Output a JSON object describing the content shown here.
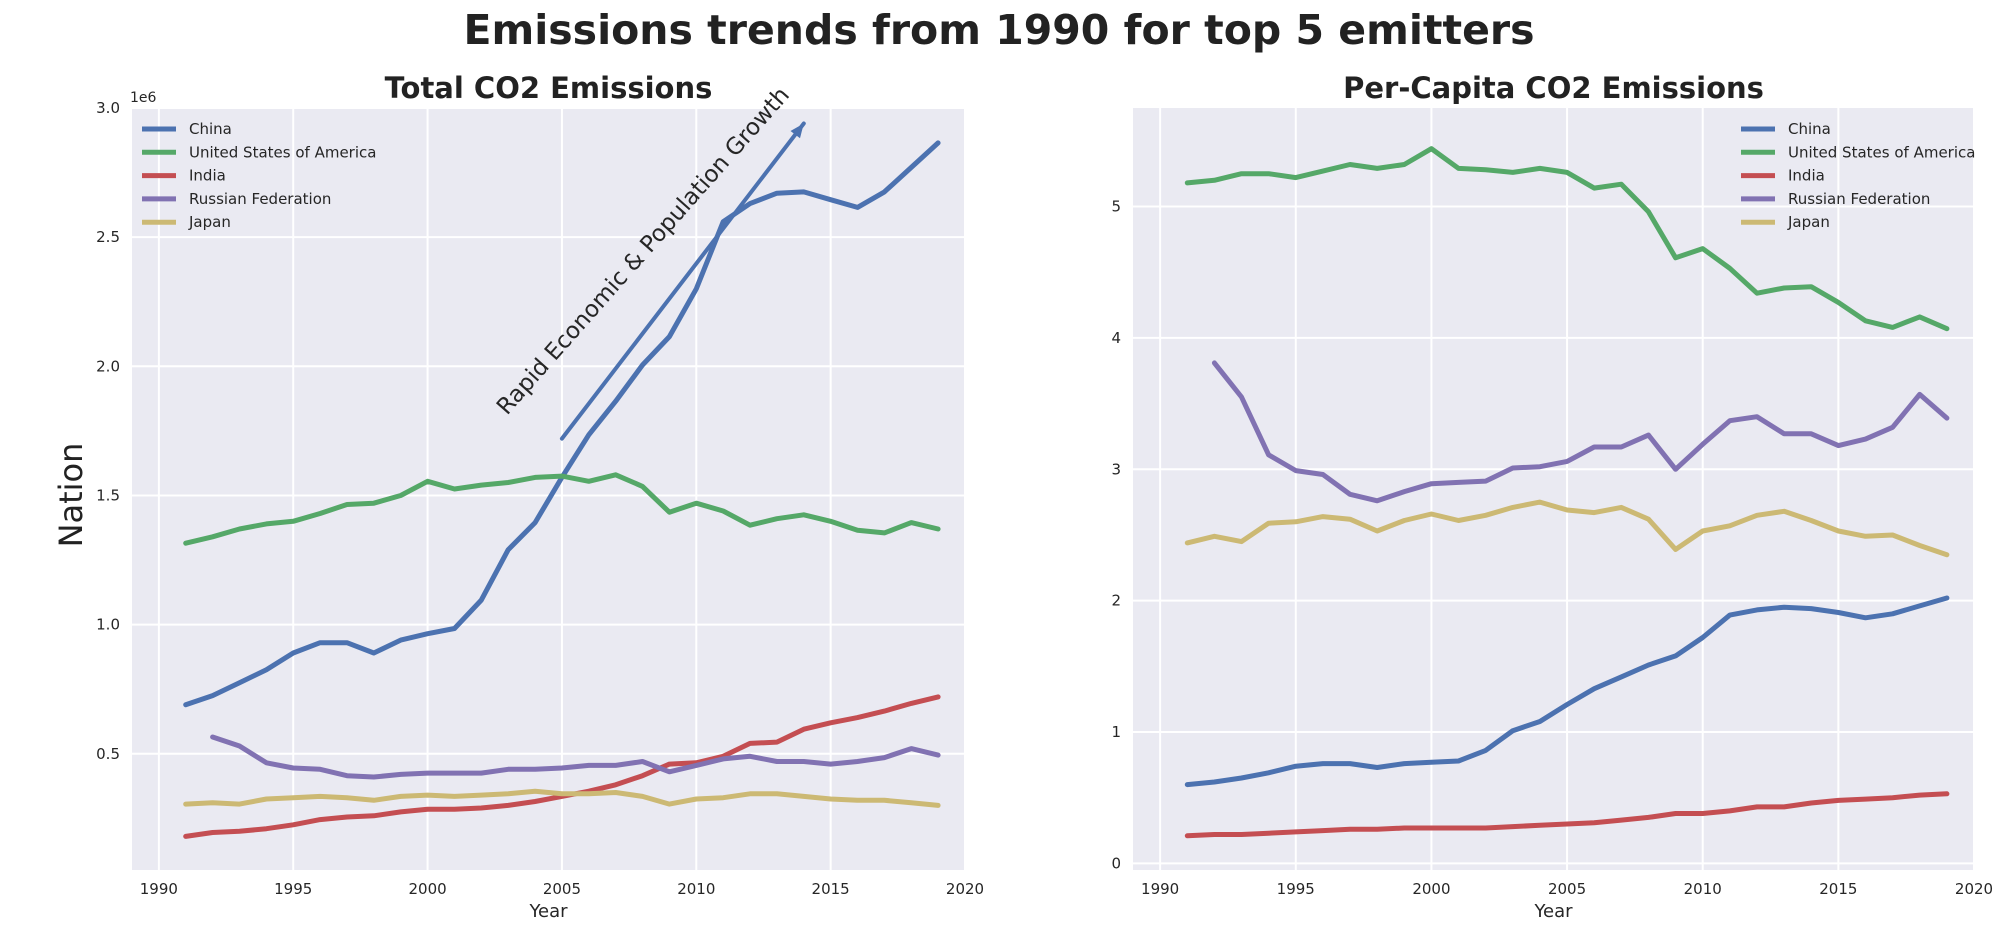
{
  "figure_title": "Emissions trends from 1990 for top 5 emitters",
  "ylabel_shared": "Nation",
  "colors": {
    "China": "#4c72b0",
    "United States of America": "#55a868",
    "India": "#c44e52",
    "Russian Federation": "#8172b2",
    "Japan": "#ccb974"
  },
  "chart_data": [
    {
      "type": "line",
      "title": "Total CO2 Emissions",
      "xlabel": "Year",
      "ylabel": "",
      "xlim": [
        1989,
        2020
      ],
      "ylim": [
        50000,
        3000000
      ],
      "y_offset_label": "1e6",
      "x_ticks": [
        1990,
        1995,
        2000,
        2005,
        2010,
        2015,
        2020
      ],
      "x_tick_labels": [
        "1990",
        "1995",
        "2000",
        "2005",
        "2010",
        "2015",
        "2020"
      ],
      "y_ticks": [
        500000,
        1000000,
        1500000,
        2000000,
        2500000,
        3000000
      ],
      "y_tick_labels": [
        "0.5",
        "1.0",
        "1.5",
        "2.0",
        "2.5",
        "3.0"
      ],
      "grid": true,
      "legend_position": "upper left",
      "series": [
        {
          "name": "China",
          "x": [
            1991,
            1992,
            1993,
            1994,
            1995,
            1996,
            1997,
            1998,
            1999,
            2000,
            2001,
            2002,
            2003,
            2004,
            2005,
            2006,
            2007,
            2008,
            2009,
            2010,
            2011,
            2012,
            2013,
            2014,
            2015,
            2016,
            2017,
            2018,
            2019
          ],
          "y": [
            690000,
            725000,
            775000,
            825000,
            890000,
            930000,
            930000,
            890000,
            940000,
            965000,
            985000,
            1095000,
            1290000,
            1395000,
            1570000,
            1735000,
            1865000,
            2005000,
            2115000,
            2300000,
            2560000,
            2630000,
            2670000,
            2675000,
            2645000,
            2615000,
            2675000,
            2770000,
            2865000
          ]
        },
        {
          "name": "United States of America",
          "x": [
            1991,
            1992,
            1993,
            1994,
            1995,
            1996,
            1997,
            1998,
            1999,
            2000,
            2001,
            2002,
            2003,
            2004,
            2005,
            2006,
            2007,
            2008,
            2009,
            2010,
            2011,
            2012,
            2013,
            2014,
            2015,
            2016,
            2017,
            2018,
            2019
          ],
          "y": [
            1315000,
            1340000,
            1370000,
            1390000,
            1400000,
            1430000,
            1465000,
            1470000,
            1500000,
            1555000,
            1525000,
            1540000,
            1550000,
            1570000,
            1575000,
            1555000,
            1580000,
            1535000,
            1435000,
            1470000,
            1440000,
            1385000,
            1410000,
            1425000,
            1400000,
            1365000,
            1355000,
            1395000,
            1370000
          ]
        },
        {
          "name": "India",
          "x": [
            1991,
            1992,
            1993,
            1994,
            1995,
            1996,
            1997,
            1998,
            1999,
            2000,
            2001,
            2002,
            2003,
            2004,
            2005,
            2006,
            2007,
            2008,
            2009,
            2010,
            2011,
            2012,
            2013,
            2014,
            2015,
            2016,
            2017,
            2018,
            2019
          ],
          "y": [
            180000,
            195000,
            200000,
            210000,
            225000,
            245000,
            255000,
            260000,
            275000,
            285000,
            285000,
            290000,
            300000,
            315000,
            335000,
            355000,
            380000,
            415000,
            460000,
            465000,
            490000,
            540000,
            545000,
            595000,
            620000,
            640000,
            665000,
            695000,
            720000
          ]
        },
        {
          "name": "Russian Federation",
          "x": [
            1992,
            1993,
            1994,
            1995,
            1996,
            1997,
            1998,
            1999,
            2000,
            2001,
            2002,
            2003,
            2004,
            2005,
            2006,
            2007,
            2008,
            2009,
            2010,
            2011,
            2012,
            2013,
            2014,
            2015,
            2016,
            2017,
            2018,
            2019
          ],
          "y": [
            565000,
            530000,
            465000,
            445000,
            440000,
            415000,
            410000,
            420000,
            425000,
            425000,
            425000,
            440000,
            440000,
            445000,
            455000,
            455000,
            470000,
            430000,
            455000,
            480000,
            490000,
            470000,
            470000,
            460000,
            470000,
            485000,
            520000,
            495000
          ]
        },
        {
          "name": "Japan",
          "x": [
            1991,
            1992,
            1993,
            1994,
            1995,
            1996,
            1997,
            1998,
            1999,
            2000,
            2001,
            2002,
            2003,
            2004,
            2005,
            2006,
            2007,
            2008,
            2009,
            2010,
            2011,
            2012,
            2013,
            2014,
            2015,
            2016,
            2017,
            2018,
            2019
          ],
          "y": [
            305000,
            310000,
            305000,
            325000,
            330000,
            335000,
            330000,
            320000,
            335000,
            340000,
            335000,
            340000,
            345000,
            355000,
            345000,
            345000,
            350000,
            335000,
            305000,
            325000,
            330000,
            345000,
            345000,
            335000,
            325000,
            320000,
            320000,
            310000,
            300000
          ]
        }
      ],
      "annotation": {
        "text": "Rapid Economic & Population Growth",
        "arrow_from": [
          2005,
          1720000
        ],
        "arrow_to": [
          2014,
          2940000
        ]
      }
    },
    {
      "type": "line",
      "title": "Per-Capita CO2 Emissions",
      "xlabel": "Year",
      "ylabel": "",
      "xlim": [
        1989,
        2020
      ],
      "ylim": [
        -0.05,
        5.75
      ],
      "x_ticks": [
        1990,
        1995,
        2000,
        2005,
        2010,
        2015,
        2020
      ],
      "x_tick_labels": [
        "1990",
        "1995",
        "2000",
        "2005",
        "2010",
        "2015",
        "2020"
      ],
      "y_ticks": [
        0,
        1,
        2,
        3,
        4,
        5
      ],
      "y_tick_labels": [
        "0",
        "1",
        "2",
        "3",
        "4",
        "5"
      ],
      "grid": true,
      "legend_position": "upper right",
      "series": [
        {
          "name": "China",
          "x": [
            1991,
            1992,
            1993,
            1994,
            1995,
            1996,
            1997,
            1998,
            1999,
            2000,
            2001,
            2002,
            2003,
            2004,
            2005,
            2006,
            2007,
            2008,
            2009,
            2010,
            2011,
            2012,
            2013,
            2014,
            2015,
            2016,
            2017,
            2018,
            2019
          ],
          "y": [
            0.6,
            0.62,
            0.65,
            0.69,
            0.74,
            0.76,
            0.76,
            0.73,
            0.76,
            0.77,
            0.78,
            0.86,
            1.01,
            1.08,
            1.21,
            1.33,
            1.42,
            1.51,
            1.58,
            1.72,
            1.89,
            1.93,
            1.95,
            1.94,
            1.91,
            1.87,
            1.9,
            1.96,
            2.02
          ]
        },
        {
          "name": "United States of America",
          "x": [
            1991,
            1992,
            1993,
            1994,
            1995,
            1996,
            1997,
            1998,
            1999,
            2000,
            2001,
            2002,
            2003,
            2004,
            2005,
            2006,
            2007,
            2008,
            2009,
            2010,
            2011,
            2012,
            2013,
            2014,
            2015,
            2016,
            2017,
            2018,
            2019
          ],
          "y": [
            5.18,
            5.2,
            5.25,
            5.25,
            5.22,
            5.27,
            5.32,
            5.29,
            5.32,
            5.44,
            5.29,
            5.28,
            5.26,
            5.29,
            5.26,
            5.14,
            5.17,
            4.96,
            4.61,
            4.68,
            4.53,
            4.34,
            4.38,
            4.39,
            4.27,
            4.13,
            4.08,
            4.16,
            4.07
          ]
        },
        {
          "name": "India",
          "x": [
            1991,
            1992,
            1993,
            1994,
            1995,
            1996,
            1997,
            1998,
            1999,
            2000,
            2001,
            2002,
            2003,
            2004,
            2005,
            2006,
            2007,
            2008,
            2009,
            2010,
            2011,
            2012,
            2013,
            2014,
            2015,
            2016,
            2017,
            2018,
            2019
          ],
          "y": [
            0.21,
            0.22,
            0.22,
            0.23,
            0.24,
            0.25,
            0.26,
            0.26,
            0.27,
            0.27,
            0.27,
            0.27,
            0.28,
            0.29,
            0.3,
            0.31,
            0.33,
            0.35,
            0.38,
            0.38,
            0.4,
            0.43,
            0.43,
            0.46,
            0.48,
            0.49,
            0.5,
            0.52,
            0.53
          ]
        },
        {
          "name": "Russian Federation",
          "x": [
            1992,
            1993,
            1994,
            1995,
            1996,
            1997,
            1998,
            1999,
            2000,
            2001,
            2002,
            2003,
            2004,
            2005,
            2006,
            2007,
            2008,
            2009,
            2010,
            2011,
            2012,
            2013,
            2014,
            2015,
            2016,
            2017,
            2018,
            2019
          ],
          "y": [
            3.81,
            3.55,
            3.11,
            2.99,
            2.96,
            2.81,
            2.76,
            2.83,
            2.89,
            2.9,
            2.91,
            3.01,
            3.02,
            3.06,
            3.17,
            3.17,
            3.26,
            3.0,
            3.19,
            3.37,
            3.4,
            3.27,
            3.27,
            3.18,
            3.23,
            3.32,
            3.57,
            3.39
          ]
        },
        {
          "name": "Japan",
          "x": [
            1991,
            1992,
            1993,
            1994,
            1995,
            1996,
            1997,
            1998,
            1999,
            2000,
            2001,
            2002,
            2003,
            2004,
            2005,
            2006,
            2007,
            2008,
            2009,
            2010,
            2011,
            2012,
            2013,
            2014,
            2015,
            2016,
            2017,
            2018,
            2019
          ],
          "y": [
            2.44,
            2.49,
            2.45,
            2.59,
            2.6,
            2.64,
            2.62,
            2.53,
            2.61,
            2.66,
            2.61,
            2.65,
            2.71,
            2.75,
            2.69,
            2.67,
            2.71,
            2.62,
            2.39,
            2.53,
            2.57,
            2.65,
            2.68,
            2.61,
            2.53,
            2.49,
            2.5,
            2.42,
            2.35
          ]
        }
      ]
    }
  ]
}
